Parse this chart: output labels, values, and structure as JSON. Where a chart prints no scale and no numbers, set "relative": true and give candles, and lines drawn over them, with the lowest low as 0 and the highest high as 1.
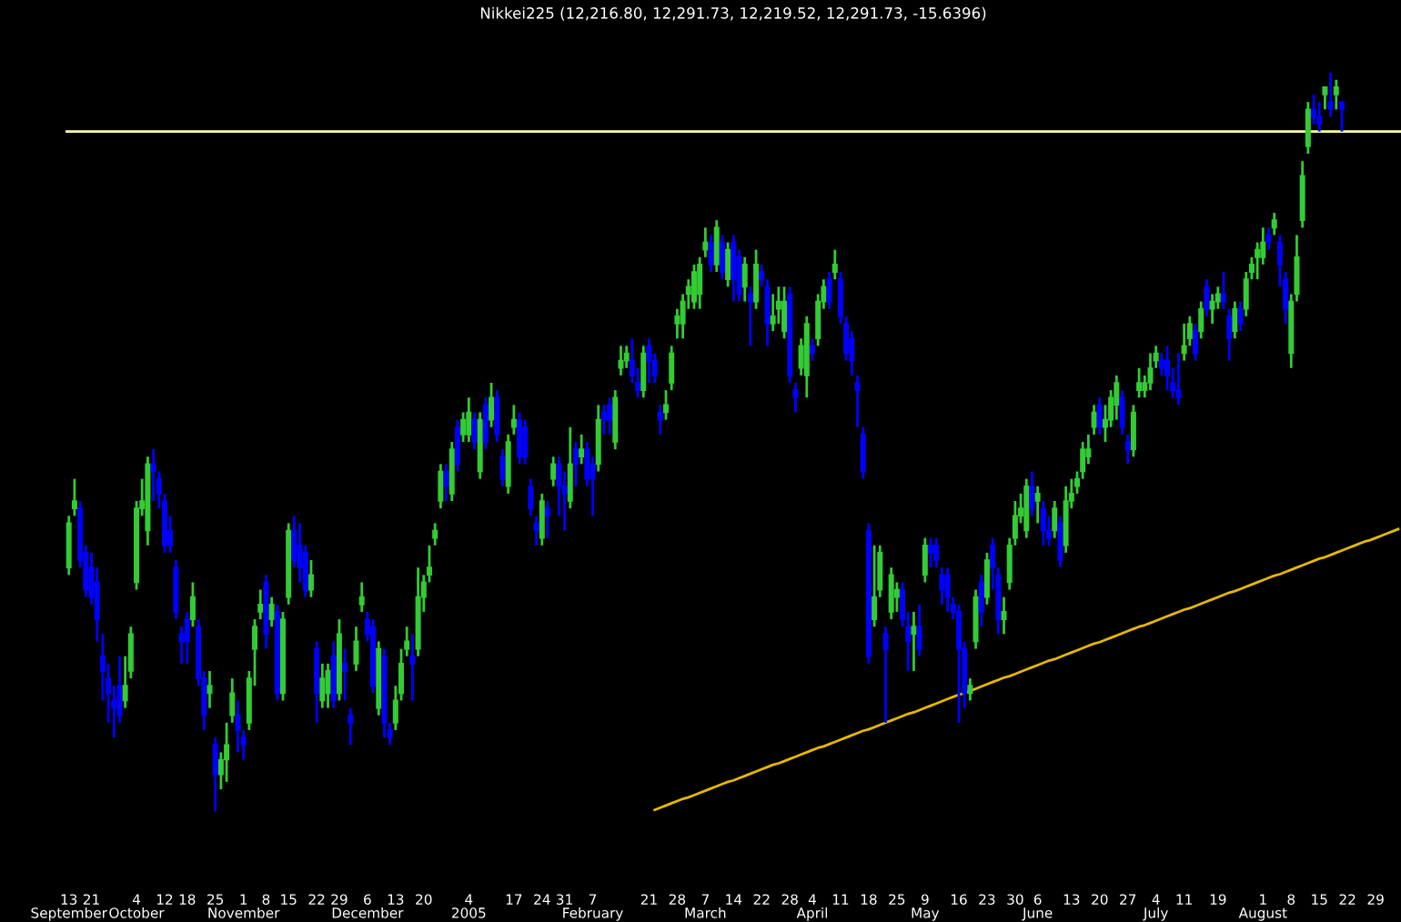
{
  "chart_data": {
    "type": "candlestick",
    "relative": true,
    "title": "Nikkei225 (12,216.80, 12,291.73, 12,219.52, 12,291.73, -15.6396)",
    "categories": [
      "13\nSeptember",
      null,
      null,
      null,
      "21",
      null,
      null,
      null,
      null,
      null,
      null,
      null,
      "4\nOctober",
      null,
      null,
      null,
      null,
      "12",
      null,
      null,
      null,
      "18",
      null,
      null,
      null,
      null,
      "25",
      null,
      null,
      null,
      null,
      "1\nNovember",
      null,
      null,
      null,
      "8",
      null,
      null,
      null,
      "15",
      null,
      null,
      null,
      null,
      "22",
      null,
      null,
      null,
      "29",
      null,
      null,
      null,
      null,
      "6\nDecember",
      null,
      null,
      null,
      null,
      "13",
      null,
      null,
      null,
      null,
      "20",
      null,
      null,
      null,
      null,
      null,
      null,
      null,
      "4\n2005",
      null,
      null,
      null,
      null,
      null,
      null,
      null,
      "17",
      null,
      null,
      null,
      null,
      "24",
      null,
      null,
      null,
      "31",
      null,
      null,
      null,
      null,
      "7\nFebruary",
      null,
      null,
      null,
      null,
      null,
      null,
      null,
      null,
      null,
      "21",
      null,
      null,
      null,
      null,
      "28",
      null,
      null,
      null,
      null,
      "7\nMarch",
      null,
      null,
      null,
      null,
      "14",
      null,
      null,
      null,
      null,
      "22",
      null,
      null,
      null,
      null,
      "28",
      null,
      null,
      null,
      "4\nApril",
      null,
      null,
      null,
      null,
      "11",
      null,
      null,
      null,
      null,
      "18",
      null,
      null,
      null,
      null,
      "25",
      null,
      null,
      null,
      null,
      "9\nMay",
      null,
      null,
      null,
      null,
      null,
      "16",
      null,
      null,
      null,
      null,
      "23",
      null,
      null,
      null,
      null,
      "30",
      null,
      null,
      null,
      "6\nJune",
      null,
      null,
      null,
      null,
      null,
      "13",
      null,
      null,
      null,
      null,
      "20",
      null,
      null,
      null,
      null,
      "27",
      null,
      null,
      null,
      null,
      "4\nJuly",
      null,
      null,
      null,
      null,
      "11",
      null,
      null,
      null,
      null,
      null,
      "19",
      null,
      null,
      null,
      null,
      null,
      null,
      null,
      "1\nAugust",
      null,
      null,
      null,
      null,
      "8",
      null,
      null,
      null,
      null,
      "15",
      null,
      null,
      null,
      null,
      "22",
      null,
      null,
      null,
      null,
      "29",
      null,
      null,
      null,
      null
    ],
    "ohlc": [
      [
        0.33,
        0.4,
        0.32,
        0.39
      ],
      [
        0.41,
        0.45,
        0.4,
        0.42
      ],
      [
        0.41,
        0.42,
        0.33,
        0.34
      ],
      [
        0.35,
        0.36,
        0.29,
        0.3
      ],
      [
        0.33,
        0.35,
        0.28,
        0.29
      ],
      [
        0.31,
        0.33,
        0.23,
        0.26
      ],
      [
        0.21,
        0.24,
        0.15,
        0.19
      ],
      [
        0.18,
        0.2,
        0.12,
        0.16
      ],
      [
        0.15,
        0.17,
        0.1,
        0.14
      ],
      [
        0.17,
        0.21,
        0.12,
        0.13
      ],
      [
        0.15,
        0.21,
        0.14,
        0.17
      ],
      [
        0.19,
        0.25,
        0.18,
        0.24
      ],
      [
        0.31,
        0.42,
        0.3,
        0.41
      ],
      [
        0.41,
        0.45,
        0.4,
        0.42
      ],
      [
        0.38,
        0.48,
        0.36,
        0.47
      ],
      [
        0.47,
        0.49,
        0.42,
        0.46
      ],
      [
        0.45,
        0.46,
        0.41,
        0.43
      ],
      [
        0.42,
        0.43,
        0.35,
        0.36
      ],
      [
        0.38,
        0.4,
        0.35,
        0.36
      ],
      [
        0.33,
        0.34,
        0.26,
        0.27
      ],
      [
        0.24,
        0.25,
        0.2,
        0.23
      ],
      [
        0.26,
        0.27,
        0.2,
        0.23
      ],
      [
        0.26,
        0.31,
        0.25,
        0.29
      ],
      [
        0.25,
        0.26,
        0.17,
        0.18
      ],
      [
        0.18,
        0.19,
        0.11,
        0.13
      ],
      [
        0.16,
        0.19,
        0.14,
        0.17
      ],
      [
        0.09,
        0.1,
        0,
        0.05
      ],
      [
        0.05,
        0.08,
        0.03,
        0.07
      ],
      [
        0.07,
        0.12,
        0.04,
        0.09
      ],
      [
        0.13,
        0.18,
        0.12,
        0.16
      ],
      [
        0.13,
        0.15,
        0.08,
        0.11
      ],
      [
        0.1,
        0.11,
        0.07,
        0.09
      ],
      [
        0.12,
        0.19,
        0.11,
        0.18
      ],
      [
        0.22,
        0.26,
        0.17,
        0.25
      ],
      [
        0.27,
        0.3,
        0.26,
        0.28
      ],
      [
        0.31,
        0.32,
        0.22,
        0.24
      ],
      [
        0.26,
        0.29,
        0.25,
        0.28
      ],
      [
        0.27,
        0.28,
        0.15,
        0.16
      ],
      [
        0.16,
        0.27,
        0.15,
        0.26
      ],
      [
        0.29,
        0.39,
        0.28,
        0.38
      ],
      [
        0.38,
        0.4,
        0.33,
        0.34
      ],
      [
        0.36,
        0.39,
        0.31,
        0.33
      ],
      [
        0.35,
        0.36,
        0.29,
        0.3
      ],
      [
        0.3,
        0.34,
        0.29,
        0.32
      ],
      [
        0.22,
        0.23,
        0.12,
        0.16
      ],
      [
        0.15,
        0.2,
        0.14,
        0.18
      ],
      [
        0.16,
        0.2,
        0.14,
        0.19
      ],
      [
        0.21,
        0.23,
        0.14,
        0.15
      ],
      [
        0.16,
        0.26,
        0.15,
        0.24
      ],
      [
        0.2,
        0.22,
        0.15,
        0.19
      ],
      [
        0.13,
        0.14,
        0.09,
        0.12
      ],
      [
        0.2,
        0.25,
        0.19,
        0.23
      ],
      [
        0.28,
        0.31,
        0.27,
        0.29
      ],
      [
        0.26,
        0.27,
        0.23,
        0.24
      ],
      [
        0.25,
        0.26,
        0.16,
        0.17
      ],
      [
        0.14,
        0.23,
        0.13,
        0.22
      ],
      [
        0.21,
        0.22,
        0.1,
        0.12
      ],
      [
        0.11,
        0.12,
        0.09,
        0.1
      ],
      [
        0.12,
        0.17,
        0.11,
        0.15
      ],
      [
        0.16,
        0.22,
        0.15,
        0.2
      ],
      [
        0.22,
        0.25,
        0.21,
        0.23
      ],
      [
        0.21,
        0.24,
        0.15,
        0.2
      ],
      [
        0.22,
        0.33,
        0.21,
        0.29
      ],
      [
        0.29,
        0.32,
        0.27,
        0.31
      ],
      [
        0.32,
        0.36,
        0.31,
        0.33
      ],
      [
        0.37,
        0.39,
        0.36,
        0.38
      ],
      [
        0.42,
        0.47,
        0.41,
        0.46
      ],
      [
        0.46,
        0.47,
        0.42,
        0.44
      ],
      [
        0.43,
        0.5,
        0.42,
        0.49
      ],
      [
        0.52,
        0.53,
        0.46,
        0.47
      ],
      [
        0.51,
        0.54,
        0.5,
        0.53
      ],
      [
        0.51,
        0.56,
        0.5,
        0.54
      ],
      [
        0.53,
        0.54,
        0.49,
        0.5
      ],
      [
        0.46,
        0.54,
        0.45,
        0.53
      ],
      [
        0.55,
        0.56,
        0.49,
        0.5
      ],
      [
        0.53,
        0.58,
        0.52,
        0.56
      ],
      [
        0.56,
        0.57,
        0.5,
        0.51
      ],
      [
        0.48,
        0.49,
        0.44,
        0.45
      ],
      [
        0.44,
        0.51,
        0.43,
        0.5
      ],
      [
        0.52,
        0.55,
        0.51,
        0.53
      ],
      [
        0.53,
        0.54,
        0.47,
        0.48
      ],
      [
        0.52,
        0.53,
        0.47,
        0.48
      ],
      [
        0.44,
        0.45,
        0.4,
        0.41
      ],
      [
        0.39,
        0.4,
        0.36,
        0.38
      ],
      [
        0.37,
        0.43,
        0.36,
        0.42
      ],
      [
        0.41,
        0.42,
        0.37,
        0.4
      ],
      [
        0.45,
        0.48,
        0.44,
        0.47
      ],
      [
        0.47,
        0.48,
        0.4,
        0.44
      ],
      [
        0.44,
        0.46,
        0.38,
        0.43
      ],
      [
        0.42,
        0.52,
        0.41,
        0.47
      ],
      [
        0.49,
        0.5,
        0.44,
        0.47
      ],
      [
        0.48,
        0.51,
        0.47,
        0.49
      ],
      [
        0.49,
        0.5,
        0.44,
        0.45
      ],
      [
        0.47,
        0.48,
        0.4,
        0.45
      ],
      [
        0.47,
        0.55,
        0.46,
        0.53
      ],
      [
        0.54,
        0.55,
        0.51,
        0.53
      ],
      [
        0.55,
        0.56,
        0.51,
        0.53
      ],
      [
        0.5,
        0.57,
        0.49,
        0.56
      ],
      [
        0.6,
        0.63,
        0.59,
        0.61
      ],
      [
        0.61,
        0.63,
        0.6,
        0.62
      ],
      [
        0.61,
        0.64,
        0.58,
        0.59
      ],
      [
        0.58,
        0.6,
        0.56,
        0.57
      ],
      [
        0.57,
        0.63,
        0.56,
        0.62
      ],
      [
        0.63,
        0.64,
        0.58,
        0.61
      ],
      [
        0.61,
        0.62,
        0.58,
        0.59
      ],
      [
        0.54,
        0.55,
        0.51,
        0.53
      ],
      [
        0.54,
        0.57,
        0.53,
        0.55
      ],
      [
        0.58,
        0.63,
        0.57,
        0.62
      ],
      [
        0.66,
        0.68,
        0.64,
        0.67
      ],
      [
        0.66,
        0.7,
        0.64,
        0.69
      ],
      [
        0.7,
        0.72,
        0.68,
        0.71
      ],
      [
        0.69,
        0.74,
        0.68,
        0.73
      ],
      [
        0.7,
        0.75,
        0.68,
        0.74
      ],
      [
        0.76,
        0.79,
        0.75,
        0.77
      ],
      [
        0.77,
        0.78,
        0.73,
        0.74
      ],
      [
        0.74,
        0.8,
        0.73,
        0.79
      ],
      [
        0.77,
        0.78,
        0.72,
        0.73
      ],
      [
        0.72,
        0.77,
        0.71,
        0.76
      ],
      [
        0.77,
        0.78,
        0.69,
        0.72
      ],
      [
        0.75,
        0.76,
        0.69,
        0.7
      ],
      [
        0.71,
        0.75,
        0.69,
        0.74
      ],
      [
        0.7,
        0.71,
        0.63,
        0.69
      ],
      [
        0.69,
        0.76,
        0.68,
        0.74
      ],
      [
        0.73,
        0.74,
        0.71,
        0.72
      ],
      [
        0.71,
        0.72,
        0.63,
        0.66
      ],
      [
        0.66,
        0.7,
        0.65,
        0.67
      ],
      [
        0.68,
        0.71,
        0.66,
        0.69
      ],
      [
        0.65,
        0.71,
        0.64,
        0.69
      ],
      [
        0.7,
        0.71,
        0.58,
        0.59
      ],
      [
        0.57,
        0.58,
        0.54,
        0.56
      ],
      [
        0.6,
        0.64,
        0.59,
        0.63
      ],
      [
        0.59,
        0.67,
        0.56,
        0.66
      ],
      [
        0.63,
        0.64,
        0.61,
        0.62
      ],
      [
        0.64,
        0.7,
        0.63,
        0.69
      ],
      [
        0.69,
        0.72,
        0.68,
        0.71
      ],
      [
        0.72,
        0.73,
        0.68,
        0.69
      ],
      [
        0.73,
        0.76,
        0.72,
        0.74
      ],
      [
        0.72,
        0.73,
        0.66,
        0.67
      ],
      [
        0.66,
        0.67,
        0.61,
        0.62
      ],
      [
        0.64,
        0.65,
        0.59,
        0.61
      ],
      [
        0.58,
        0.59,
        0.52,
        0.57
      ],
      [
        0.51,
        0.52,
        0.45,
        0.46
      ],
      [
        0.38,
        0.39,
        0.2,
        0.21
      ],
      [
        0.26,
        0.36,
        0.25,
        0.29
      ],
      [
        0.3,
        0.36,
        0.29,
        0.35
      ],
      [
        0.24,
        0.25,
        0.12,
        0.22
      ],
      [
        0.27,
        0.33,
        0.26,
        0.32
      ],
      [
        0.29,
        0.31,
        0.27,
        0.3
      ],
      [
        0.3,
        0.31,
        0.25,
        0.26
      ],
      [
        0.25,
        0.27,
        0.19,
        0.23
      ],
      [
        0.24,
        0.27,
        0.19,
        0.25
      ],
      [
        0.25,
        0.28,
        0.21,
        0.22
      ],
      [
        0.32,
        0.37,
        0.31,
        0.36
      ],
      [
        0.36,
        0.37,
        0.33,
        0.35
      ],
      [
        0.36,
        0.37,
        0.33,
        0.34
      ],
      [
        0.32,
        0.33,
        0.28,
        0.3
      ],
      [
        0.32,
        0.33,
        0.27,
        0.29
      ],
      [
        0.28,
        0.29,
        0.26,
        0.27
      ],
      [
        0.27,
        0.28,
        0.12,
        0.22
      ],
      [
        0.22,
        0.23,
        0.14,
        0.16
      ],
      [
        0.16,
        0.18,
        0.15,
        0.17
      ],
      [
        0.23,
        0.3,
        0.22,
        0.29
      ],
      [
        0.31,
        0.32,
        0.25,
        0.27
      ],
      [
        0.29,
        0.35,
        0.28,
        0.34
      ],
      [
        0.36,
        0.37,
        0.3,
        0.33
      ],
      [
        0.32,
        0.33,
        0.24,
        0.26
      ],
      [
        0.26,
        0.29,
        0.24,
        0.27
      ],
      [
        0.31,
        0.37,
        0.3,
        0.36
      ],
      [
        0.37,
        0.42,
        0.36,
        0.4
      ],
      [
        0.4,
        0.43,
        0.39,
        0.41
      ],
      [
        0.38,
        0.45,
        0.37,
        0.44
      ],
      [
        0.44,
        0.46,
        0.4,
        0.41
      ],
      [
        0.42,
        0.44,
        0.39,
        0.43
      ],
      [
        0.41,
        0.42,
        0.36,
        0.38
      ],
      [
        0.38,
        0.4,
        0.36,
        0.37
      ],
      [
        0.38,
        0.42,
        0.37,
        0.41
      ],
      [
        0.39,
        0.4,
        0.33,
        0.34
      ],
      [
        0.36,
        0.44,
        0.35,
        0.42
      ],
      [
        0.42,
        0.45,
        0.41,
        0.43
      ],
      [
        0.44,
        0.46,
        0.43,
        0.45
      ],
      [
        0.46,
        0.5,
        0.45,
        0.49
      ],
      [
        0.48,
        0.51,
        0.47,
        0.49
      ],
      [
        0.52,
        0.55,
        0.51,
        0.54
      ],
      [
        0.55,
        0.56,
        0.51,
        0.52
      ],
      [
        0.52,
        0.55,
        0.5,
        0.53
      ],
      [
        0.53,
        0.57,
        0.52,
        0.56
      ],
      [
        0.55,
        0.59,
        0.53,
        0.58
      ],
      [
        0.56,
        0.57,
        0.51,
        0.52
      ],
      [
        0.5,
        0.51,
        0.47,
        0.49
      ],
      [
        0.49,
        0.55,
        0.48,
        0.54
      ],
      [
        0.57,
        0.6,
        0.56,
        0.58
      ],
      [
        0.57,
        0.59,
        0.56,
        0.58
      ],
      [
        0.58,
        0.62,
        0.57,
        0.6
      ],
      [
        0.61,
        0.63,
        0.6,
        0.62
      ],
      [
        0.61,
        0.62,
        0.59,
        0.6
      ],
      [
        0.61,
        0.63,
        0.57,
        0.59
      ],
      [
        0.58,
        0.6,
        0.56,
        0.57
      ],
      [
        0.57,
        0.62,
        0.55,
        0.56
      ],
      [
        0.62,
        0.66,
        0.61,
        0.63
      ],
      [
        0.64,
        0.67,
        0.63,
        0.66
      ],
      [
        0.65,
        0.66,
        0.61,
        0.62
      ],
      [
        0.65,
        0.69,
        0.64,
        0.68
      ],
      [
        0.71,
        0.72,
        0.67,
        0.68
      ],
      [
        0.68,
        0.7,
        0.66,
        0.69
      ],
      [
        0.69,
        0.71,
        0.68,
        0.7
      ],
      [
        0.7,
        0.73,
        0.68,
        0.69
      ],
      [
        0.67,
        0.68,
        0.61,
        0.64
      ],
      [
        0.65,
        0.69,
        0.64,
        0.68
      ],
      [
        0.68,
        0.69,
        0.65,
        0.66
      ],
      [
        0.68,
        0.73,
        0.67,
        0.72
      ],
      [
        0.73,
        0.75,
        0.72,
        0.74
      ],
      [
        0.75,
        0.77,
        0.72,
        0.76
      ],
      [
        0.75,
        0.79,
        0.74,
        0.77
      ],
      [
        0.78,
        0.79,
        0.76,
        0.77
      ],
      [
        0.79,
        0.81,
        0.78,
        0.8
      ],
      [
        0.77,
        0.78,
        0.71,
        0.74
      ],
      [
        0.72,
        0.73,
        0.66,
        0.68
      ],
      [
        0.62,
        0.7,
        0.6,
        0.69
      ],
      [
        0.7,
        0.78,
        0.69,
        0.75
      ],
      [
        0.8,
        0.88,
        0.79,
        0.86
      ],
      [
        0.9,
        0.96,
        0.89,
        0.95
      ],
      [
        0.95,
        0.97,
        0.93,
        0.94
      ],
      [
        0.94,
        0.96,
        0.92,
        0.93
      ],
      [
        0.97,
        0.98,
        0.95,
        0.98
      ],
      [
        0.96,
        1,
        0.94,
        0.95
      ],
      [
        0.97,
        0.99,
        0.95,
        0.98
      ],
      [
        0.96,
        0.96,
        0.92,
        0.95
      ],
      null,
      null,
      null,
      null,
      null,
      null,
      null,
      null,
      null,
      null
    ],
    "colors": [
      "#33cc33",
      "#33cc33",
      "#0000ff",
      "#0000ff",
      "#0000ff",
      "#0000ff",
      "#0000ff",
      "#0000ff",
      "#0000ff",
      "#0000ff",
      "#33cc33",
      "#33cc33",
      "#33cc33",
      "#33cc33",
      "#33cc33",
      "#0000ff",
      "#0000ff",
      "#0000ff",
      "#0000ff",
      "#0000ff",
      "#0000ff",
      "#0000ff",
      "#33cc33",
      "#0000ff",
      "#0000ff",
      "#33cc33",
      "#0000ff",
      "#33cc33",
      "#33cc33",
      "#33cc33",
      "#0000ff",
      "#0000ff",
      "#33cc33",
      "#33cc33",
      "#33cc33",
      "#0000ff",
      "#33cc33",
      "#0000ff",
      "#33cc33",
      "#33cc33",
      "#0000ff",
      "#0000ff",
      "#0000ff",
      "#33cc33",
      "#0000ff",
      "#33cc33",
      "#33cc33",
      "#0000ff",
      "#33cc33",
      "#0000ff",
      "#0000ff",
      "#33cc33",
      "#33cc33",
      "#0000ff",
      "#0000ff",
      "#33cc33",
      "#0000ff",
      "#0000ff",
      "#33cc33",
      "#33cc33",
      "#33cc33",
      "#0000ff",
      "#33cc33",
      "#33cc33",
      "#33cc33",
      "#33cc33",
      "#33cc33",
      "#0000ff",
      "#33cc33",
      "#0000ff",
      "#33cc33",
      "#33cc33",
      "#0000ff",
      "#33cc33",
      "#0000ff",
      "#33cc33",
      "#0000ff",
      "#0000ff",
      "#33cc33",
      "#33cc33",
      "#0000ff",
      "#0000ff",
      "#0000ff",
      "#0000ff",
      "#33cc33",
      "#0000ff",
      "#33cc33",
      "#0000ff",
      "#0000ff",
      "#33cc33",
      "#0000ff",
      "#33cc33",
      "#0000ff",
      "#0000ff",
      "#33cc33",
      "#0000ff",
      "#0000ff",
      "#33cc33",
      "#33cc33",
      "#33cc33",
      "#0000ff",
      "#0000ff",
      "#33cc33",
      "#0000ff",
      "#0000ff",
      "#0000ff",
      "#33cc33",
      "#33cc33",
      "#33cc33",
      "#33cc33",
      "#33cc33",
      "#33cc33",
      "#33cc33",
      "#33cc33",
      "#0000ff",
      "#33cc33",
      "#0000ff",
      "#33cc33",
      "#0000ff",
      "#0000ff",
      "#33cc33",
      "#0000ff",
      "#33cc33",
      "#0000ff",
      "#0000ff",
      "#33cc33",
      "#33cc33",
      "#33cc33",
      "#0000ff",
      "#0000ff",
      "#33cc33",
      "#33cc33",
      "#0000ff",
      "#33cc33",
      "#33cc33",
      "#0000ff",
      "#33cc33",
      "#0000ff",
      "#0000ff",
      "#0000ff",
      "#0000ff",
      "#0000ff",
      "#0000ff",
      "#33cc33",
      "#33cc33",
      "#0000ff",
      "#33cc33",
      "#33cc33",
      "#0000ff",
      "#0000ff",
      "#33cc33",
      "#0000ff",
      "#33cc33",
      "#0000ff",
      "#0000ff",
      "#0000ff",
      "#0000ff",
      "#0000ff",
      "#0000ff",
      "#0000ff",
      "#33cc33",
      "#33cc33",
      "#0000ff",
      "#33cc33",
      "#0000ff",
      "#0000ff",
      "#33cc33",
      "#33cc33",
      "#33cc33",
      "#33cc33",
      "#33cc33",
      "#0000ff",
      "#33cc33",
      "#0000ff",
      "#0000ff",
      "#33cc33",
      "#0000ff",
      "#33cc33",
      "#33cc33",
      "#33cc33",
      "#33cc33",
      "#33cc33",
      "#33cc33",
      "#0000ff",
      "#33cc33",
      "#33cc33",
      "#33cc33",
      "#0000ff",
      "#0000ff",
      "#33cc33",
      "#33cc33",
      "#33cc33",
      "#33cc33",
      "#33cc33",
      "#0000ff",
      "#0000ff",
      "#0000ff",
      "#0000ff",
      "#33cc33",
      "#33cc33",
      "#0000ff",
      "#33cc33",
      "#0000ff",
      "#33cc33",
      "#33cc33",
      "#0000ff",
      "#0000ff",
      "#33cc33",
      "#0000ff",
      "#33cc33",
      "#33cc33",
      "#33cc33",
      "#33cc33",
      "#0000ff",
      "#33cc33",
      "#0000ff",
      "#0000ff",
      "#33cc33",
      "#33cc33",
      "#33cc33",
      "#33cc33",
      "#0000ff",
      "#0000ff",
      "#33cc33",
      "#0000ff",
      "#33cc33",
      "#0000ff",
      null,
      null,
      null,
      null,
      null,
      null,
      null,
      null,
      null,
      null
    ],
    "series": [
      {
        "type": "line",
        "color": "#e6b800",
        "values": [
          null,
          null,
          null,
          null,
          null,
          null,
          null,
          null,
          null,
          null,
          null,
          null,
          null,
          null,
          null,
          null,
          null,
          null,
          null,
          null,
          null,
          null,
          null,
          null,
          null,
          null,
          null,
          null,
          null,
          null,
          null,
          null,
          null,
          null,
          null,
          null,
          null,
          null,
          null,
          null,
          null,
          null,
          null,
          null,
          null,
          null,
          null,
          null,
          null,
          null,
          null,
          null,
          null,
          null,
          null,
          null,
          null,
          null,
          null,
          null,
          null,
          null,
          null,
          null,
          null,
          null,
          null,
          null,
          null,
          null,
          null,
          null,
          null,
          null,
          null,
          null,
          null,
          null,
          null,
          null,
          null,
          null,
          null,
          null,
          null,
          null,
          null,
          null,
          null,
          null,
          null,
          null,
          null,
          null,
          null,
          null,
          null,
          null,
          null,
          null,
          null,
          null,
          null,
          null,
          0.002,
          0.005,
          0.008,
          0.011,
          0.014,
          0.017,
          0.019,
          0.022,
          0.025,
          0.028,
          0.031,
          0.034,
          0.037,
          0.04,
          0.042,
          0.045,
          0.048,
          0.051,
          0.054,
          0.057,
          0.06,
          0.063,
          0.065,
          0.068,
          0.071,
          0.074,
          0.077,
          0.08,
          0.083,
          0.086,
          0.088,
          0.091,
          0.094,
          0.097,
          0.1,
          0.103,
          0.106,
          0.109,
          0.111,
          0.114,
          0.117,
          0.12,
          0.123,
          0.126,
          0.129,
          0.132,
          0.134,
          0.137,
          0.14,
          0.143,
          0.146,
          0.149,
          0.152,
          0.155,
          0.158,
          0.16,
          0.163,
          0.166,
          0.169,
          0.172,
          0.175,
          0.178,
          0.181,
          0.183,
          0.186,
          0.189,
          0.192,
          0.195,
          0.198,
          0.201,
          0.204,
          0.206,
          0.209,
          0.212,
          0.215,
          0.218,
          0.221,
          0.224,
          0.227,
          0.229,
          0.232,
          0.235,
          0.238,
          0.241,
          0.244,
          0.247,
          0.25,
          0.252,
          0.255,
          0.258,
          0.261,
          0.264,
          0.267,
          0.27,
          0.273,
          0.275,
          0.278,
          0.281,
          0.284,
          0.287,
          0.29,
          0.293,
          0.296,
          0.298,
          0.301,
          0.304,
          0.307,
          0.31,
          0.313,
          0.316,
          0.319,
          0.321,
          0.324,
          0.327,
          0.33,
          0.333,
          0.336,
          0.339,
          0.342,
          0.344,
          0.347,
          0.35,
          0.353,
          0.356,
          0.359,
          0.362,
          0.365,
          0.367,
          0.37,
          0.373,
          0.376,
          0.379,
          0.382
        ]
      }
    ],
    "ref_lines": [
      {
        "axis": "y",
        "value": 0.92,
        "color": "#ffffaa"
      }
    ]
  }
}
